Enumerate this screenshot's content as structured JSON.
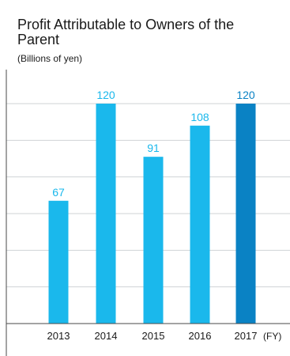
{
  "chart_data": {
    "type": "bar",
    "title": "Profit Attributable to Owners of the Parent",
    "subtitle": "(Billions of yen)",
    "categories": [
      "2013",
      "2014",
      "2015",
      "2016",
      "2017"
    ],
    "values": [
      67,
      120,
      91,
      108,
      120
    ],
    "x_unit_label": "(FY)",
    "ylim": [
      0,
      120
    ],
    "grid": true,
    "colors": {
      "bar": "#1ab8ec",
      "highlight_bar": "#0a82c4",
      "label": "#1ab8ec",
      "highlight_label": "#0a82c4",
      "grid": "#cfd3d6",
      "axis": "#4a4a4a"
    },
    "highlight_index": 4
  }
}
